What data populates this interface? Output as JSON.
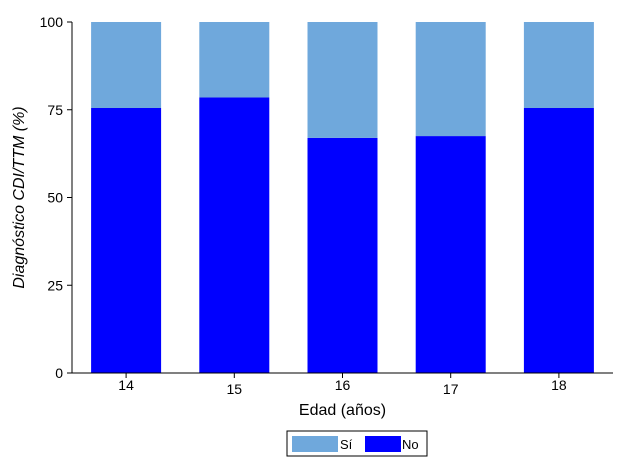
{
  "chart_data": {
    "type": "bar",
    "stacked": true,
    "percent": true,
    "categories": [
      "14",
      "15",
      "16",
      "17",
      "18"
    ],
    "series": [
      {
        "name": "No",
        "color": "#0000ff",
        "values": [
          75.5,
          78.5,
          67,
          67.5,
          75.5
        ]
      },
      {
        "name": "Sí",
        "color": "#6fa8dc",
        "values": [
          24.5,
          21.5,
          33,
          32.5,
          24.5
        ]
      }
    ],
    "title": "",
    "xlabel": "Edad (años)",
    "ylabel": "Diagnóstico CDI/TTM (%)",
    "ylim": [
      0,
      100
    ],
    "yticks": [
      "0",
      "25",
      "50",
      "75",
      "100"
    ],
    "grid": false,
    "legend": {
      "position": "bottom",
      "entries": [
        "Sí",
        "No"
      ]
    }
  }
}
